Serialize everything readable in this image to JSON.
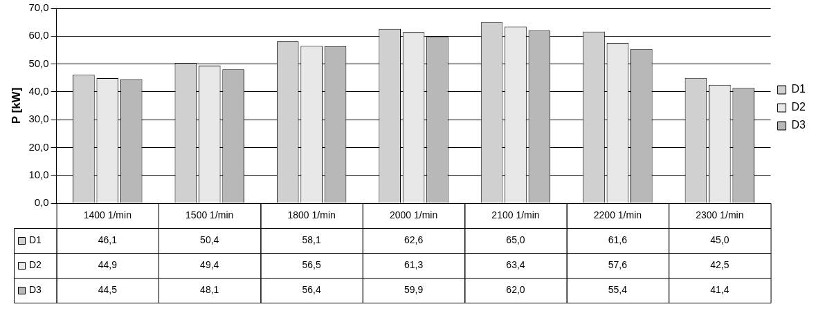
{
  "chart_data": {
    "type": "bar",
    "ylabel": "P [kW]",
    "categories": [
      "1400 1/min",
      "1500 1/min",
      "1800 1/min",
      "2000 1/min",
      "2100 1/min",
      "2200 1/min",
      "2300 1/min"
    ],
    "series": [
      {
        "name": "D1",
        "color": "#d0d0d0",
        "values": [
          46.1,
          50.4,
          58.1,
          62.6,
          65.0,
          61.6,
          45.0
        ],
        "value_labels": [
          "46,1",
          "50,4",
          "58,1",
          "62,6",
          "65,0",
          "61,6",
          "45,0"
        ]
      },
      {
        "name": "D2",
        "color": "#e8e8e8",
        "values": [
          44.9,
          49.4,
          56.5,
          61.3,
          63.4,
          57.6,
          42.5
        ],
        "value_labels": [
          "44,9",
          "49,4",
          "56,5",
          "61,3",
          "63,4",
          "57,6",
          "42,5"
        ]
      },
      {
        "name": "D3",
        "color": "#b8b8b8",
        "values": [
          44.5,
          48.1,
          56.4,
          59.9,
          62.0,
          55.4,
          41.4
        ],
        "value_labels": [
          "44,5",
          "48,1",
          "56,4",
          "59,9",
          "62,0",
          "55,4",
          "41,4"
        ]
      }
    ],
    "ylim": [
      0,
      70
    ],
    "yticks": [
      {
        "value": 0,
        "label": "0,0"
      },
      {
        "value": 10,
        "label": "10,0"
      },
      {
        "value": 20,
        "label": "20,0"
      },
      {
        "value": 30,
        "label": "30,0"
      },
      {
        "value": 40,
        "label": "40,0"
      },
      {
        "value": 50,
        "label": "50,0"
      },
      {
        "value": 60,
        "label": "60,0"
      },
      {
        "value": 70,
        "label": "70,0"
      }
    ],
    "grid": "y",
    "legend": "right"
  }
}
